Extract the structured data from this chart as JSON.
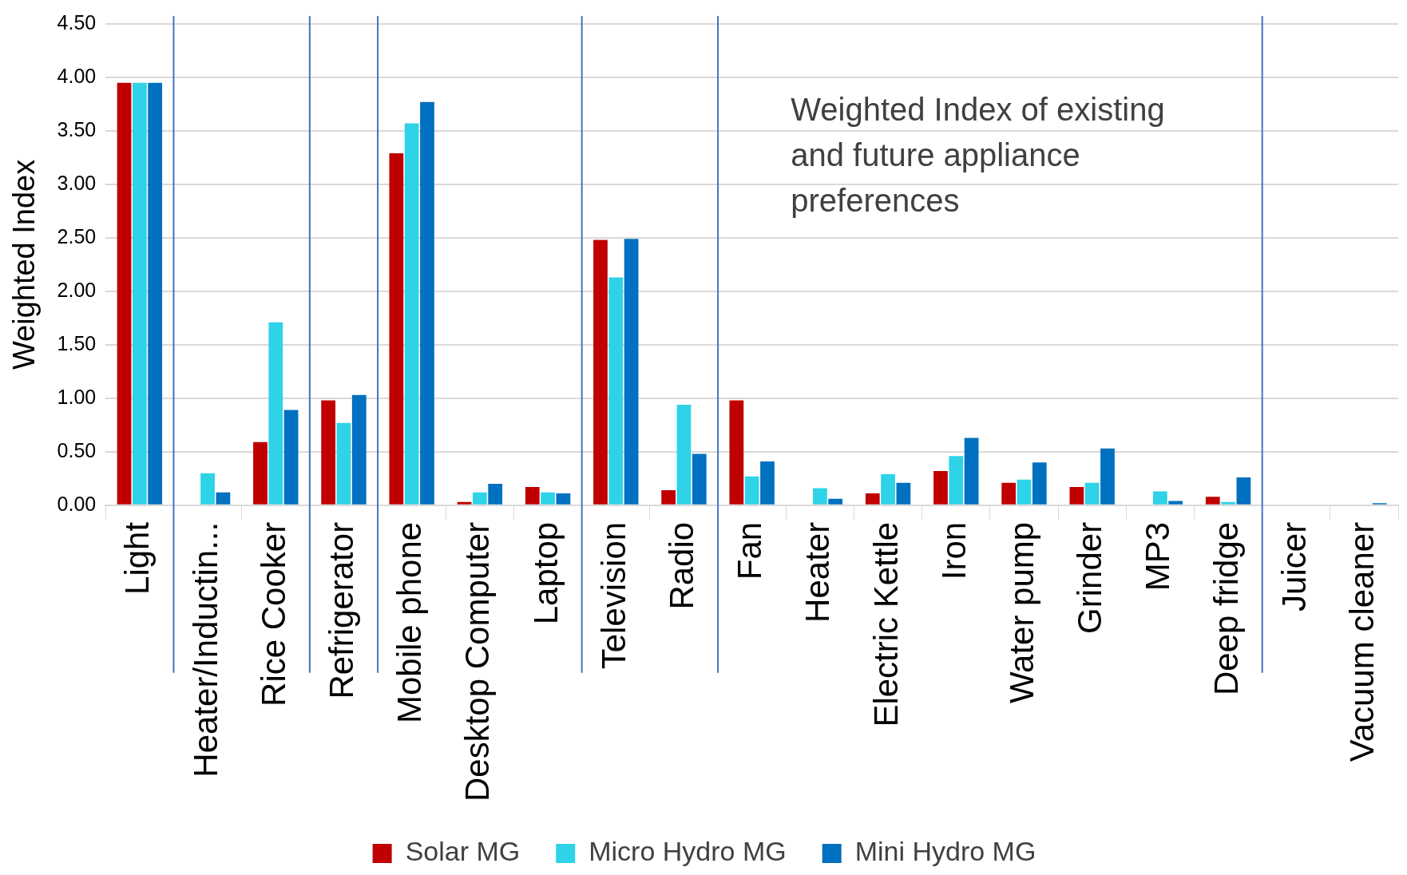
{
  "chart_data": {
    "type": "bar",
    "ylabel": "Weighted Index",
    "annotations": [
      "Weighted Index of existing and future appliance preferences"
    ],
    "categories": [
      "Light",
      "Heater/Inductin...",
      "Rice Cooker",
      "Refrigerator",
      "Mobile phone",
      "Desktop Computer",
      "Laptop",
      "Television",
      "Radio",
      "Fan",
      "Heater",
      "Electric Kettle",
      "Iron",
      "Water pump",
      "Grinder",
      "MP3",
      "Deep fridge",
      "Juicer",
      "Vacuum cleaner"
    ],
    "series": [
      {
        "name": "Solar MG",
        "color": "#c00000",
        "values": [
          3.95,
          0,
          0.59,
          0.98,
          3.29,
          0.03,
          0.17,
          2.48,
          0.14,
          0.98,
          0,
          0.11,
          0.32,
          0.21,
          0.17,
          0,
          0.08,
          0,
          0
        ]
      },
      {
        "name": "Micro Hydro MG",
        "color": "#2ed3e8",
        "values": [
          3.95,
          0.3,
          1.71,
          0.77,
          3.57,
          0.12,
          0.12,
          2.13,
          0.94,
          0.27,
          0.16,
          0.29,
          0.46,
          0.24,
          0.21,
          0.13,
          0.03,
          0,
          0
        ]
      },
      {
        "name": "Mini Hydro MG",
        "color": "#0070c0",
        "values": [
          3.95,
          0.12,
          0.89,
          1.03,
          3.77,
          0.2,
          0.11,
          2.49,
          0.48,
          0.41,
          0.06,
          0.21,
          0.63,
          0.4,
          0.53,
          0.04,
          0.26,
          0,
          0.02
        ]
      }
    ],
    "ylim": [
      0,
      4.5
    ],
    "yticks": [
      {
        "value": 0,
        "label": "0.00"
      },
      {
        "value": 0.5,
        "label": "0.50"
      },
      {
        "value": 1,
        "label": "1.00"
      },
      {
        "value": 1.5,
        "label": "1.50"
      },
      {
        "value": 2,
        "label": "2.00"
      },
      {
        "value": 2.5,
        "label": "2.50"
      },
      {
        "value": 3,
        "label": "3.00"
      },
      {
        "value": 3.5,
        "label": "3.50"
      },
      {
        "value": 4,
        "label": "4.00"
      },
      {
        "value": 4.5,
        "label": "4.50"
      }
    ],
    "grid": "y",
    "legend": "bottom"
  }
}
